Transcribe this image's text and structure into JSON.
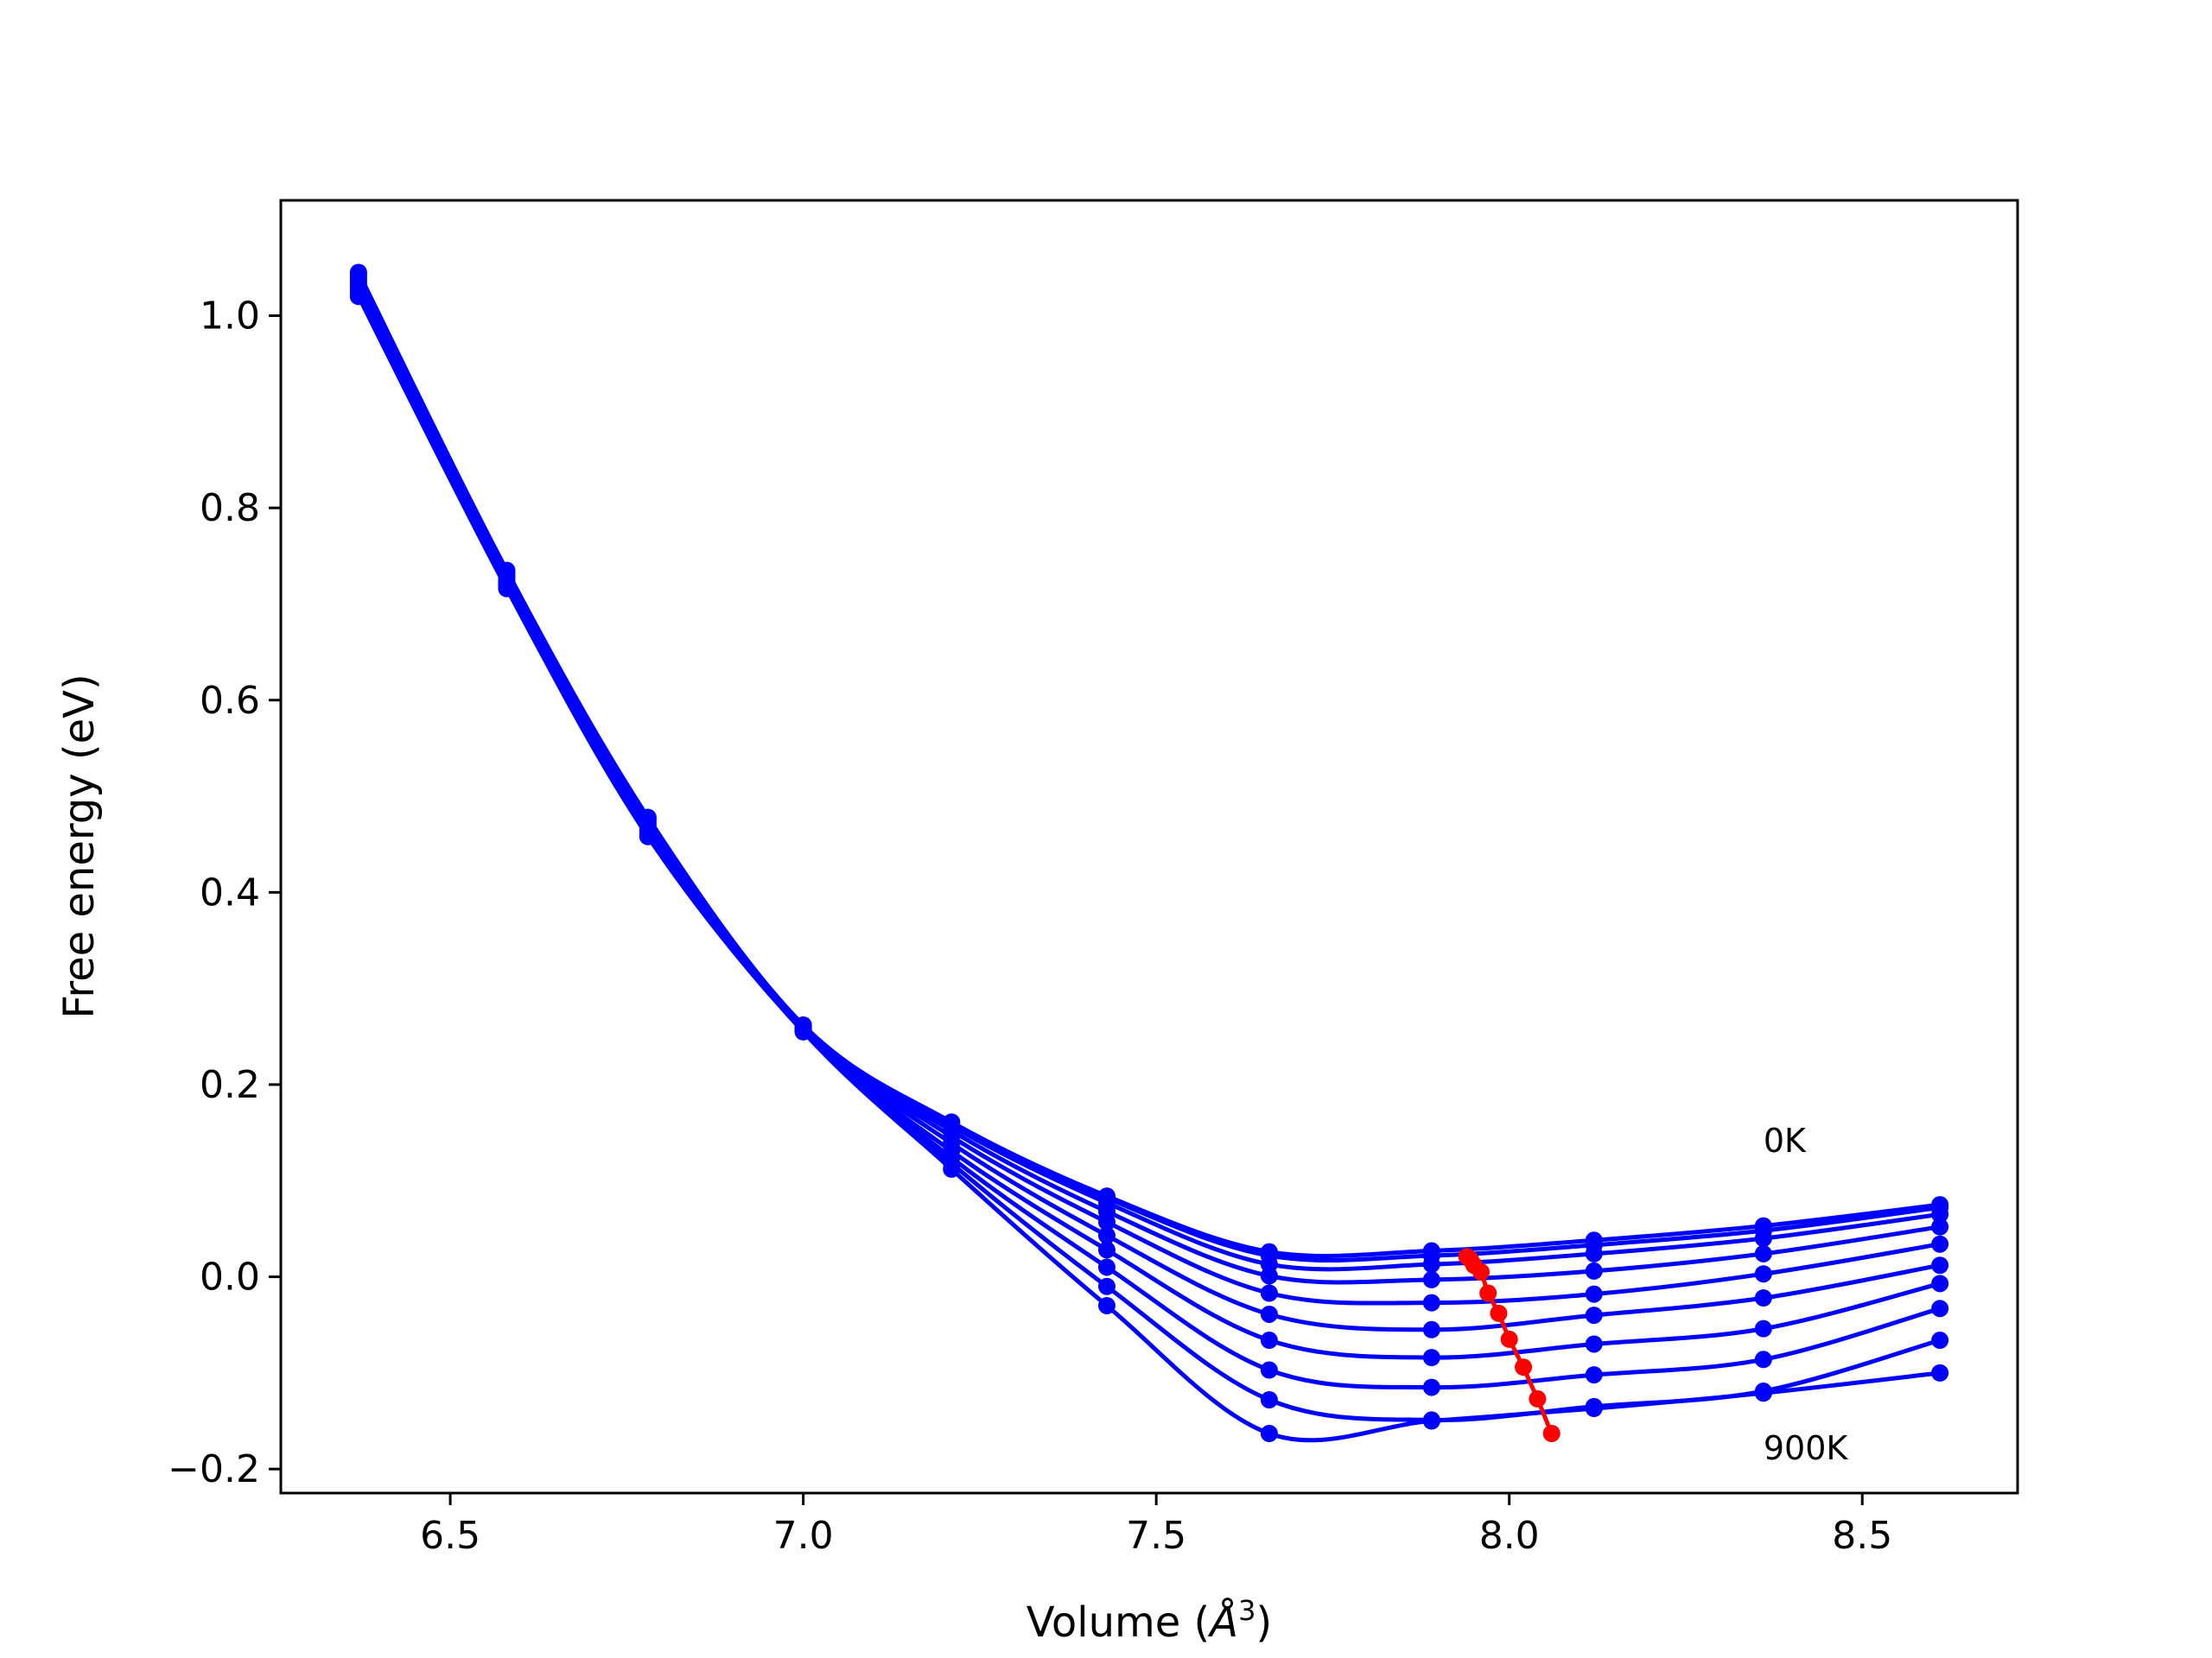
{
  "chart_data": {
    "type": "scatter",
    "title": "",
    "xlabel": "Volume",
    "xlabel_unit": "Å",
    "xlabel_unit_exponent": "3",
    "ylabel": "Free energy (eV)",
    "xlim": [
      6.26,
      8.72
    ],
    "ylim": [
      -0.225,
      1.12
    ],
    "xticks": [
      6.5,
      7.0,
      7.5,
      8.0,
      8.5
    ],
    "xtick_labels": [
      "6.5",
      "7.0",
      "7.5",
      "8.0",
      "8.5"
    ],
    "yticks": [
      -0.2,
      0.0,
      0.2,
      0.4,
      0.6,
      0.8,
      1.0
    ],
    "ytick_labels": [
      "−0.2",
      "0.0",
      "0.2",
      "0.4",
      "0.6",
      "0.8",
      "1.0"
    ],
    "grid": false,
    "legend": "none",
    "colors": {
      "curves": "#0000ff",
      "minima": "#ff0000",
      "frame": "#000000"
    },
    "annotations": [
      {
        "text": "0K",
        "x": 8.36,
        "y": 0.13
      },
      {
        "text": "900K",
        "x": 8.36,
        "y": -0.19
      }
    ],
    "x": [
      6.37,
      6.58,
      6.78,
      7.0,
      7.21,
      7.43,
      7.66,
      7.89,
      8.12,
      8.36,
      8.61
    ],
    "series": [
      {
        "values": [
          1.045,
          0.735,
          0.478,
          0.262,
          0.161,
          0.084,
          0.026,
          0.027,
          0.038,
          0.053,
          0.075
        ]
      },
      {
        "values": [
          1.043,
          0.733,
          0.476,
          0.261,
          0.16,
          0.082,
          0.022,
          0.022,
          0.033,
          0.048,
          0.072
        ]
      },
      {
        "values": [
          1.04,
          0.73,
          0.473,
          0.26,
          0.157,
          0.077,
          0.013,
          0.013,
          0.024,
          0.04,
          0.065
        ]
      },
      {
        "values": [
          1.037,
          0.727,
          0.47,
          0.259,
          0.152,
          0.068,
          0.001,
          -0.003,
          0.006,
          0.024,
          0.052
        ]
      },
      {
        "values": [
          1.034,
          0.724,
          0.467,
          0.258,
          0.146,
          0.057,
          -0.017,
          -0.027,
          -0.018,
          0.003,
          0.034
        ]
      },
      {
        "values": [
          1.031,
          0.722,
          0.465,
          0.257,
          0.139,
          0.043,
          -0.039,
          -0.055,
          -0.04,
          -0.022,
          0.012
        ]
      },
      {
        "values": [
          1.028,
          0.72,
          0.463,
          0.256,
          0.131,
          0.028,
          -0.066,
          -0.084,
          -0.07,
          -0.054,
          -0.007
        ]
      },
      {
        "values": [
          1.025,
          0.719,
          0.461,
          0.256,
          0.124,
          0.01,
          -0.097,
          -0.115,
          -0.102,
          -0.086,
          -0.033
        ]
      },
      {
        "values": [
          1.022,
          0.717,
          0.459,
          0.255,
          0.118,
          -0.01,
          -0.128,
          -0.149,
          -0.135,
          -0.119,
          -0.066
        ]
      },
      {
        "values": [
          1.02,
          0.716,
          0.458,
          0.255,
          0.112,
          -0.03,
          -0.163,
          -0.15,
          -0.137,
          -0.121,
          -0.1
        ]
      }
    ],
    "minima": {
      "x": [
        7.94,
        7.945,
        7.95,
        7.96,
        7.97,
        7.985,
        8.0,
        8.02,
        8.04,
        8.06
      ],
      "y": [
        0.021,
        0.018,
        0.012,
        0.005,
        -0.017,
        -0.038,
        -0.065,
        -0.094,
        -0.127,
        -0.163
      ]
    }
  }
}
